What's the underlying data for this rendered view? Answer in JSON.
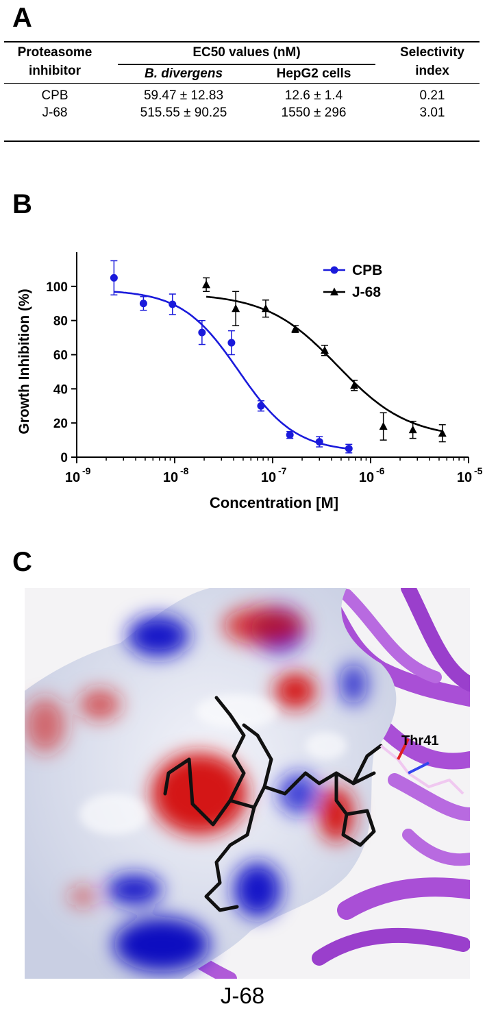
{
  "panels": {
    "a": "A",
    "b": "B",
    "c": "C"
  },
  "table": {
    "header_col1_line1": "Proteasome",
    "header_col1_line2": "inhibitor",
    "header_group": "EC50 values (nM)",
    "header_sub1": "B. divergens",
    "header_sub2": "HepG2 cells",
    "header_col4_line1": "Selectivity",
    "header_col4_line2": "index",
    "rows": [
      {
        "inhibitor": "CPB",
        "b_divergens": "59.47 ± 12.83",
        "hepg2": "12.6 ± 1.4",
        "selectivity": "0.21"
      },
      {
        "inhibitor": "J-68",
        "b_divergens": "515.55 ± 90.25",
        "hepg2": "1550 ± 296",
        "selectivity": "3.01"
      }
    ]
  },
  "chart_data": {
    "type": "scatter",
    "xlabel": "Concentration [M]",
    "ylabel": "Growth Inhibition (%)",
    "x_scale": "log10",
    "xlim": [
      1e-09,
      1e-05
    ],
    "ylim": [
      0,
      120
    ],
    "x_ticks": [
      {
        "base": "10",
        "exp": "-9"
      },
      {
        "base": "10",
        "exp": "-8"
      },
      {
        "base": "10",
        "exp": "-7"
      },
      {
        "base": "10",
        "exp": "-6"
      },
      {
        "base": "10",
        "exp": "-5"
      }
    ],
    "y_ticks": [
      0,
      20,
      40,
      60,
      80,
      100
    ],
    "legend_position": "top-right",
    "series": [
      {
        "name": "CPB",
        "color": "#1a1adb",
        "marker": "circle",
        "points": [
          {
            "x": 2.4e-09,
            "y": 105,
            "err": 10
          },
          {
            "x": 4.8e-09,
            "y": 90,
            "err": 4
          },
          {
            "x": 9.5e-09,
            "y": 89.5,
            "err": 6
          },
          {
            "x": 1.9e-08,
            "y": 73,
            "err": 7
          },
          {
            "x": 3.8e-08,
            "y": 67,
            "err": 7
          },
          {
            "x": 7.6e-08,
            "y": 30,
            "err": 3
          },
          {
            "x": 1.5e-07,
            "y": 13,
            "err": 2
          },
          {
            "x": 3e-07,
            "y": 9,
            "err": 3
          },
          {
            "x": 6e-07,
            "y": 5,
            "err": 2.5
          }
        ],
        "fit": {
          "top": 98,
          "bottom": 3,
          "ec50": 4.5e-08,
          "hill": 1.5,
          "x_from": 2.4e-09,
          "x_to": 6e-07
        }
      },
      {
        "name": "J-68",
        "color": "#000000",
        "marker": "triangle",
        "points": [
          {
            "x": 2.1e-08,
            "y": 101,
            "err": 4
          },
          {
            "x": 4.2e-08,
            "y": 87,
            "err": 10
          },
          {
            "x": 8.5e-08,
            "y": 87,
            "err": 5
          },
          {
            "x": 1.7e-07,
            "y": 75,
            "err": 2
          },
          {
            "x": 3.4e-07,
            "y": 62.5,
            "err": 3
          },
          {
            "x": 6.8e-07,
            "y": 42,
            "err": 3
          },
          {
            "x": 1.35e-06,
            "y": 18,
            "err": 8
          },
          {
            "x": 2.7e-06,
            "y": 16,
            "err": 5
          },
          {
            "x": 5.4e-06,
            "y": 14,
            "err": 5
          }
        ],
        "fit": {
          "top": 96,
          "bottom": 11,
          "ec50": 4.6e-07,
          "hill": 1.2,
          "x_from": 2.1e-08,
          "x_to": 5.4e-06
        }
      }
    ]
  },
  "panel_c": {
    "residue_label": "Thr41",
    "caption": "J-68",
    "colors": {
      "ribbon": "#a94fd6",
      "positive": "#1010c0",
      "negative": "#d81414",
      "neutral": "#e6e9f3",
      "ligand": "#111111"
    }
  }
}
